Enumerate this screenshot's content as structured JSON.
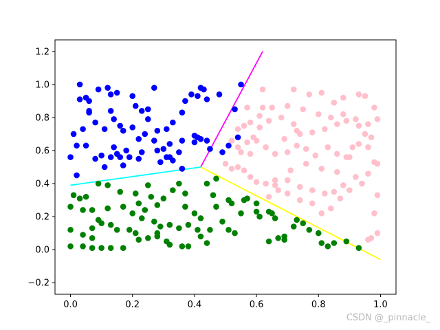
{
  "watermark": "CSDN @_pinnacle_",
  "chart_data": {
    "type": "scatter",
    "title": "",
    "xlabel": "",
    "ylabel": "",
    "xlim": [
      -0.05,
      1.05
    ],
    "ylim": [
      -0.27,
      1.27
    ],
    "grid": false,
    "x_ticks": [
      "0.0",
      "0.2",
      "0.4",
      "0.6",
      "0.8",
      "1.0"
    ],
    "x_tick_values": [
      0.0,
      0.2,
      0.4,
      0.6,
      0.8,
      1.0
    ],
    "y_ticks": [
      "−0.2",
      "0.0",
      "0.2",
      "0.4",
      "0.6",
      "0.8",
      "1.0",
      "1.2"
    ],
    "y_tick_values": [
      -0.2,
      0.0,
      0.2,
      0.4,
      0.6,
      0.8,
      1.0,
      1.2
    ],
    "series": [
      {
        "color": "#0000ff",
        "points": [
          [
            0.03,
            1.0
          ],
          [
            0.12,
            0.98
          ],
          [
            0.09,
            0.97
          ],
          [
            0.15,
            0.95
          ],
          [
            0.2,
            0.93
          ],
          [
            0.27,
            0.98
          ],
          [
            0.05,
            0.92
          ],
          [
            0.03,
            0.91
          ],
          [
            0.13,
            0.94
          ],
          [
            0.06,
            0.9
          ],
          [
            0.21,
            0.87
          ],
          [
            0.25,
            0.85
          ],
          [
            0.06,
            0.83
          ],
          [
            0.13,
            0.84
          ],
          [
            0.23,
            0.84
          ],
          [
            0.25,
            0.79
          ],
          [
            0.14,
            0.79
          ],
          [
            0.16,
            0.75
          ],
          [
            0.08,
            0.77
          ],
          [
            0.01,
            0.7
          ],
          [
            0.04,
            0.73
          ],
          [
            0.11,
            0.73
          ],
          [
            0.2,
            0.74
          ],
          [
            0.24,
            0.7
          ],
          [
            0.17,
            0.72
          ],
          [
            0.22,
            0.67
          ],
          [
            0.28,
            0.72
          ],
          [
            0.31,
            0.73
          ],
          [
            0.33,
            0.77
          ],
          [
            0.36,
            0.83
          ],
          [
            0.37,
            0.9
          ],
          [
            0.39,
            0.94
          ],
          [
            0.42,
            0.98
          ],
          [
            0.43,
            0.97
          ],
          [
            0.41,
            0.93
          ],
          [
            0.44,
            0.91
          ],
          [
            0.48,
            0.94
          ],
          [
            0.32,
            0.64
          ],
          [
            0.27,
            0.66
          ],
          [
            0.3,
            0.61
          ],
          [
            0.4,
            0.69
          ],
          [
            0.41,
            0.68
          ],
          [
            0.42,
            0.67
          ],
          [
            0.18,
            0.6
          ],
          [
            0.14,
            0.62
          ],
          [
            0.15,
            0.58
          ],
          [
            0.23,
            0.59
          ],
          [
            0.28,
            0.6
          ],
          [
            0.35,
            0.59
          ],
          [
            0.44,
            0.66
          ],
          [
            0.45,
            0.61
          ],
          [
            0.4,
            0.65
          ],
          [
            0.05,
            0.63
          ],
          [
            0.02,
            0.63
          ],
          [
            0.08,
            0.55
          ],
          [
            0.1,
            0.57
          ],
          [
            0.13,
            0.56
          ],
          [
            0.16,
            0.56
          ],
          [
            0.19,
            0.56
          ],
          [
            0.17,
            0.51
          ],
          [
            0.22,
            0.55
          ],
          [
            0.29,
            0.53
          ],
          [
            0.32,
            0.56
          ],
          [
            0.33,
            0.54
          ],
          [
            0.36,
            0.49
          ],
          [
            0.0,
            0.56
          ],
          [
            0.02,
            0.45
          ],
          [
            0.49,
            0.59
          ],
          [
            0.51,
            0.63
          ],
          [
            0.54,
            0.68
          ],
          [
            0.55,
            1.0
          ],
          [
            0.53,
            0.85
          ],
          [
            0.36,
            0.66
          ],
          [
            0.31,
            0.56
          ],
          [
            0.11,
            0.5
          ],
          [
            0.06,
            0.84
          ]
        ]
      },
      {
        "color": "#008000",
        "points": [
          [
            0.01,
            0.33
          ],
          [
            0.03,
            0.31
          ],
          [
            0.0,
            0.26
          ],
          [
            0.05,
            0.32
          ],
          [
            0.09,
            0.4
          ],
          [
            0.12,
            0.39
          ],
          [
            0.16,
            0.35
          ],
          [
            0.17,
            0.26
          ],
          [
            0.12,
            0.25
          ],
          [
            0.09,
            0.18
          ],
          [
            0.1,
            0.16
          ],
          [
            0.13,
            0.15
          ],
          [
            0.04,
            0.24
          ],
          [
            0.07,
            0.24
          ],
          [
            0.0,
            0.12
          ],
          [
            0.04,
            0.09
          ],
          [
            0.07,
            0.07
          ],
          [
            0.07,
            0.13
          ],
          [
            0.15,
            0.12
          ],
          [
            0.19,
            0.12
          ],
          [
            0.21,
            0.1
          ],
          [
            0.22,
            0.06
          ],
          [
            0.25,
            0.07
          ],
          [
            0.28,
            0.1
          ],
          [
            0.28,
            0.08
          ],
          [
            0.31,
            0.05
          ],
          [
            0.32,
            0.03
          ],
          [
            0.36,
            0.02
          ],
          [
            0.38,
            0.02
          ],
          [
            0.42,
            0.08
          ],
          [
            0.44,
            0.04
          ],
          [
            0.42,
            0.19
          ],
          [
            0.4,
            0.22
          ],
          [
            0.37,
            0.26
          ],
          [
            0.37,
            0.34
          ],
          [
            0.35,
            0.4
          ],
          [
            0.33,
            0.36
          ],
          [
            0.3,
            0.31
          ],
          [
            0.28,
            0.27
          ],
          [
            0.26,
            0.32
          ],
          [
            0.24,
            0.24
          ],
          [
            0.22,
            0.28
          ],
          [
            0.21,
            0.34
          ],
          [
            0.25,
            0.39
          ],
          [
            0.2,
            0.22
          ],
          [
            0.23,
            0.19
          ],
          [
            0.27,
            0.17
          ],
          [
            0.29,
            0.14
          ],
          [
            0.32,
            0.15
          ],
          [
            0.35,
            0.13
          ],
          [
            0.38,
            0.15
          ],
          [
            0.41,
            0.12
          ],
          [
            0.45,
            0.12
          ],
          [
            0.47,
            0.26
          ],
          [
            0.46,
            0.33
          ],
          [
            0.44,
            0.4
          ],
          [
            0.47,
            0.43
          ],
          [
            0.51,
            0.3
          ],
          [
            0.52,
            0.28
          ],
          [
            0.55,
            0.22
          ],
          [
            0.56,
            0.3
          ],
          [
            0.57,
            0.31
          ],
          [
            0.6,
            0.23
          ],
          [
            0.6,
            0.28
          ],
          [
            0.61,
            0.2
          ],
          [
            0.64,
            0.23
          ],
          [
            0.65,
            0.22
          ],
          [
            0.66,
            0.19
          ],
          [
            0.69,
            0.08
          ],
          [
            0.72,
            0.14
          ],
          [
            0.73,
            0.18
          ],
          [
            0.75,
            0.16
          ],
          [
            0.77,
            0.12
          ],
          [
            0.8,
            0.1
          ],
          [
            0.81,
            0.04
          ],
          [
            0.83,
            0.02
          ],
          [
            0.85,
            0.04
          ],
          [
            0.89,
            0.05
          ],
          [
            0.93,
            0.01
          ],
          [
            0.0,
            0.02
          ],
          [
            0.04,
            0.02
          ],
          [
            0.07,
            0.01
          ],
          [
            0.1,
            0.01
          ],
          [
            0.13,
            0.01
          ],
          [
            0.17,
            0.01
          ],
          [
            0.64,
            0.05
          ],
          [
            0.67,
            0.07
          ],
          [
            0.69,
            0.06
          ],
          [
            0.53,
            0.1
          ],
          [
            0.51,
            0.12
          ],
          [
            0.49,
            0.17
          ]
        ]
      },
      {
        "color": "#ffc0cb",
        "points": [
          [
            0.62,
            0.97
          ],
          [
            0.72,
            0.97
          ],
          [
            0.77,
            0.94
          ],
          [
            0.81,
            0.95
          ],
          [
            0.85,
            0.89
          ],
          [
            0.88,
            0.92
          ],
          [
            0.93,
            0.94
          ],
          [
            0.95,
            0.93
          ],
          [
            0.98,
            0.86
          ],
          [
            0.99,
            0.79
          ],
          [
            0.96,
            0.76
          ],
          [
            0.93,
            0.75
          ],
          [
            0.89,
            0.78
          ],
          [
            0.86,
            0.76
          ],
          [
            0.82,
            0.73
          ],
          [
            0.78,
            0.71
          ],
          [
            0.74,
            0.7
          ],
          [
            0.72,
            0.76
          ],
          [
            0.68,
            0.8
          ],
          [
            0.64,
            0.78
          ],
          [
            0.61,
            0.81
          ],
          [
            0.58,
            0.77
          ],
          [
            0.56,
            0.75
          ],
          [
            0.54,
            0.73
          ],
          [
            0.52,
            0.66
          ],
          [
            0.54,
            0.62
          ],
          [
            0.57,
            0.65
          ],
          [
            0.6,
            0.66
          ],
          [
            0.63,
            0.62
          ],
          [
            0.66,
            0.58
          ],
          [
            0.7,
            0.59
          ],
          [
            0.73,
            0.63
          ],
          [
            0.76,
            0.61
          ],
          [
            0.79,
            0.57
          ],
          [
            0.83,
            0.62
          ],
          [
            0.86,
            0.58
          ],
          [
            0.89,
            0.56
          ],
          [
            0.91,
            0.62
          ],
          [
            0.93,
            0.64
          ],
          [
            0.96,
            0.62
          ],
          [
            0.98,
            0.53
          ],
          [
            0.99,
            0.52
          ],
          [
            0.96,
            0.46
          ],
          [
            0.92,
            0.44
          ],
          [
            0.88,
            0.39
          ],
          [
            0.85,
            0.35
          ],
          [
            0.82,
            0.34
          ],
          [
            0.78,
            0.36
          ],
          [
            0.74,
            0.38
          ],
          [
            0.7,
            0.42
          ],
          [
            0.66,
            0.42
          ],
          [
            0.63,
            0.4
          ],
          [
            0.6,
            0.41
          ],
          [
            0.58,
            0.44
          ],
          [
            0.56,
            0.48
          ],
          [
            0.54,
            0.5
          ],
          [
            0.52,
            0.49
          ],
          [
            0.5,
            0.52
          ],
          [
            0.55,
            0.59
          ],
          [
            0.59,
            0.68
          ],
          [
            0.62,
            0.86
          ],
          [
            0.65,
            0.86
          ],
          [
            0.7,
            0.87
          ],
          [
            0.75,
            0.85
          ],
          [
            0.8,
            0.82
          ],
          [
            0.84,
            0.8
          ],
          [
            0.88,
            0.82
          ],
          [
            0.92,
            0.79
          ],
          [
            0.95,
            0.7
          ],
          [
            0.97,
            0.68
          ],
          [
            0.99,
            0.33
          ],
          [
            0.98,
            0.22
          ],
          [
            0.99,
            0.1
          ],
          [
            0.97,
            0.07
          ],
          [
            0.96,
            0.06
          ],
          [
            0.94,
            0.4
          ],
          [
            0.9,
            0.36
          ],
          [
            0.87,
            0.31
          ],
          [
            0.84,
            0.25
          ],
          [
            0.81,
            0.22
          ],
          [
            0.78,
            0.28
          ],
          [
            0.74,
            0.3
          ],
          [
            0.7,
            0.34
          ],
          [
            0.67,
            0.36
          ],
          [
            0.64,
            0.32
          ],
          [
            0.66,
            0.39
          ],
          [
            0.71,
            0.48
          ],
          [
            0.76,
            0.52
          ],
          [
            0.81,
            0.49
          ],
          [
            0.86,
            0.47
          ],
          [
            0.9,
            0.56
          ],
          [
            0.69,
            0.67
          ],
          [
            0.73,
            0.72
          ],
          [
            0.58,
            0.58
          ],
          [
            0.61,
            0.74
          ],
          [
            0.57,
            0.86
          ]
        ]
      }
    ],
    "lines": [
      {
        "color": "#ff00ff",
        "points": [
          [
            0.42,
            0.5
          ],
          [
            0.62,
            1.2
          ]
        ]
      },
      {
        "color": "#00ffff",
        "points": [
          [
            0.42,
            0.5
          ],
          [
            0.0,
            0.39
          ]
        ]
      },
      {
        "color": "#ffff00",
        "points": [
          [
            0.42,
            0.5
          ],
          [
            1.0,
            -0.06
          ]
        ]
      }
    ]
  }
}
